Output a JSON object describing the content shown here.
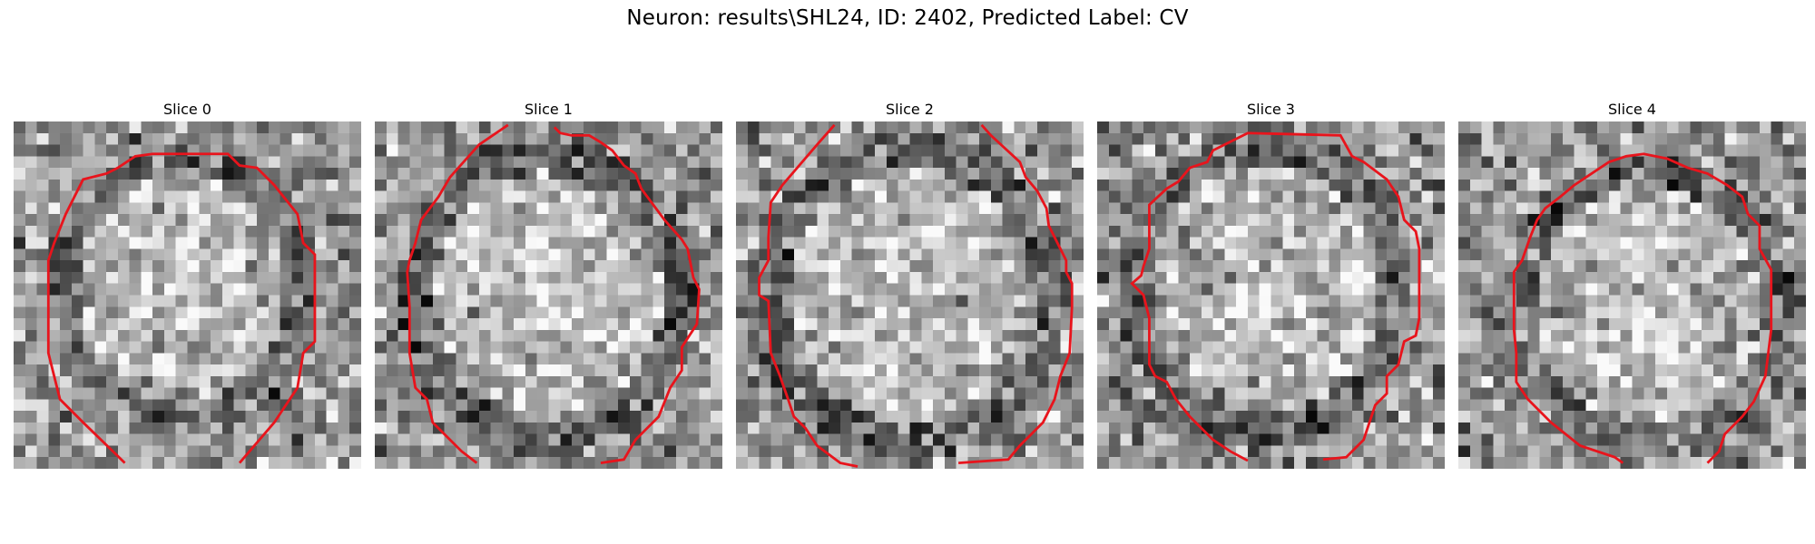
{
  "figure": {
    "title": "Neuron: results\\SHL24, ID: 2402, Predicted Label: CV",
    "contour_color": "#e8141c"
  },
  "panels": [
    {
      "title": "Slice 0"
    },
    {
      "title": "Slice 1"
    },
    {
      "title": "Slice 2"
    },
    {
      "title": "Slice 3"
    },
    {
      "title": "Slice 4"
    }
  ]
}
